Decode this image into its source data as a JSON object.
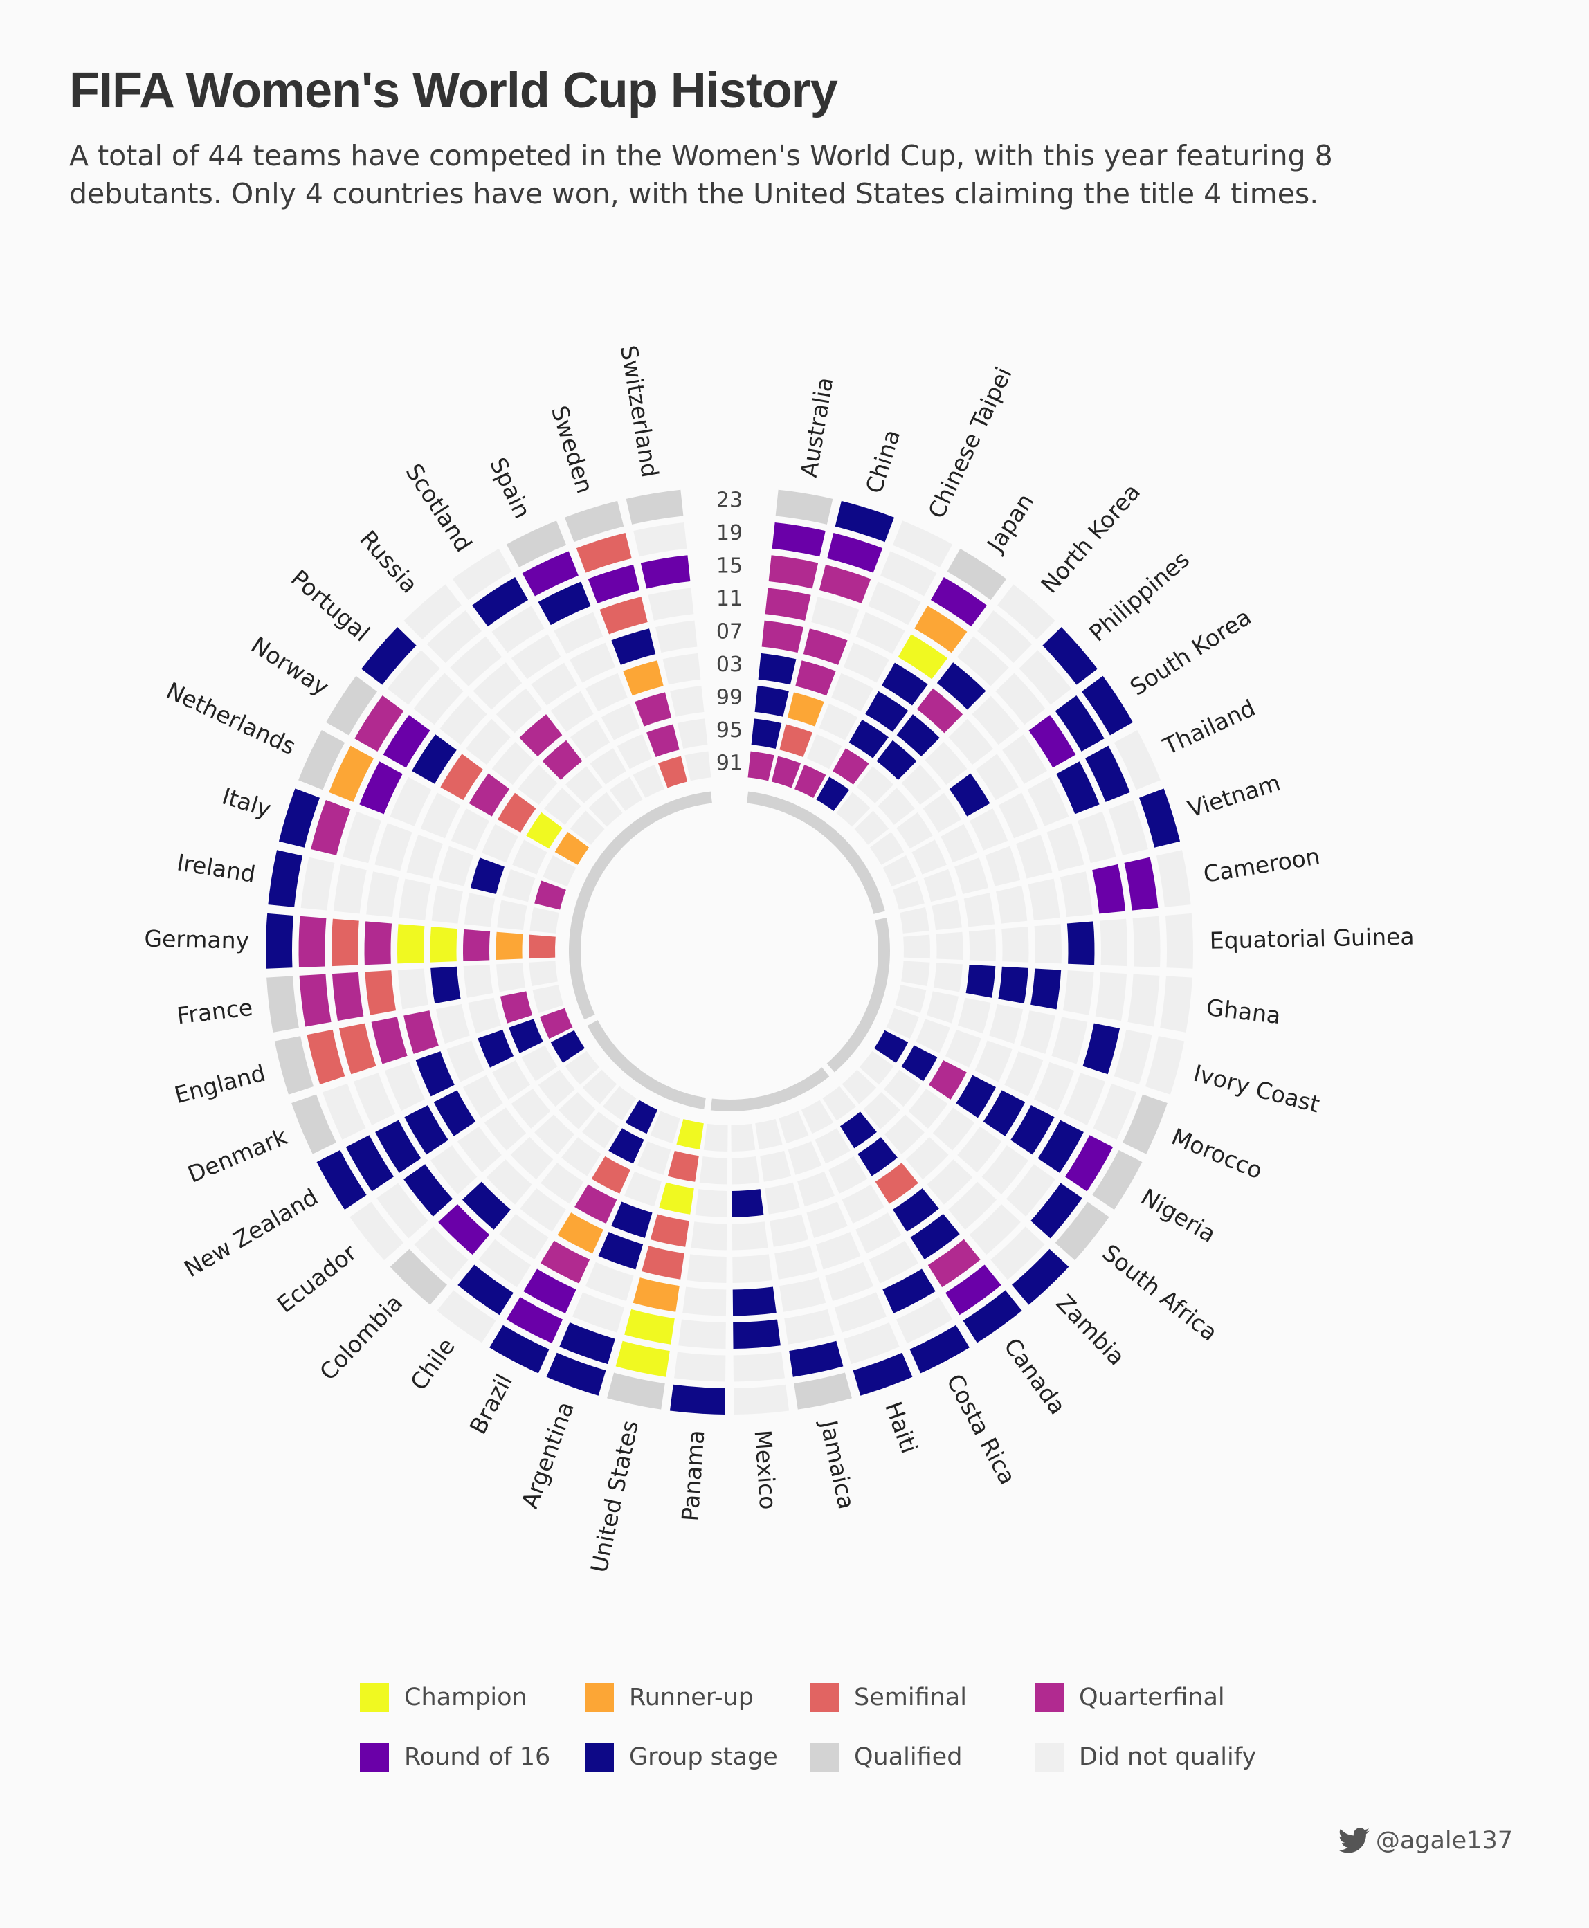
{
  "title": "FIFA Women's World Cup History",
  "subtitle": "A total of 44 teams have competed in the Women's World Cup, with this year featuring 8 debutants. Only 4 countries have won, with the United States claiming the title 4 times.",
  "credit": {
    "icon": "twitter-bird-icon",
    "handle": "@agale137"
  },
  "legend": [
    {
      "key": "C",
      "label": "Champion",
      "color": "#f0f921"
    },
    {
      "key": "F",
      "label": "Runner-up",
      "color": "#fca636"
    },
    {
      "key": "S",
      "label": "Semifinal",
      "color": "#e16462"
    },
    {
      "key": "Q",
      "label": "Quarterfinal",
      "color": "#b12a90"
    },
    {
      "key": "R",
      "label": "Round of 16",
      "color": "#6a00a8"
    },
    {
      "key": "G",
      "label": "Group stage",
      "color": "#0d0887"
    },
    {
      "key": "Y",
      "label": "Qualified",
      "color": "#d3d3d3"
    },
    {
      "key": "N",
      "label": "Did not qualify",
      "color": "#efefef"
    }
  ],
  "chart_data": {
    "type": "radial-heatmap",
    "year_labels": [
      "91",
      "95",
      "99",
      "03",
      "07",
      "11",
      "15",
      "19",
      "23"
    ],
    "results_order": "1991,1995,1999,2003,2007,2011,2015,2019,2023",
    "teams": [
      {
        "name": "Australia",
        "results": [
          "Q",
          "G",
          "G",
          "G",
          "Q",
          "Q",
          "Q",
          "R",
          "Y"
        ]
      },
      {
        "name": "China",
        "results": [
          "Q",
          "S",
          "F",
          "Q",
          "Q",
          "N",
          "Q",
          "R",
          "G"
        ]
      },
      {
        "name": "Chinese Taipei",
        "results": [
          "Q",
          "N",
          "N",
          "N",
          "N",
          "N",
          "N",
          "N",
          "N"
        ]
      },
      {
        "name": "Japan",
        "results": [
          "G",
          "Q",
          "G",
          "G",
          "G",
          "C",
          "F",
          "R",
          "Y"
        ]
      },
      {
        "name": "North Korea",
        "results": [
          "N",
          "N",
          "G",
          "G",
          "Q",
          "G",
          "N",
          "N",
          "N"
        ]
      },
      {
        "name": "Philippines",
        "results": [
          "N",
          "N",
          "N",
          "N",
          "N",
          "N",
          "N",
          "N",
          "G"
        ]
      },
      {
        "name": "South Korea",
        "results": [
          "N",
          "N",
          "N",
          "G",
          "N",
          "N",
          "R",
          "G",
          "G"
        ]
      },
      {
        "name": "Thailand",
        "results": [
          "N",
          "N",
          "N",
          "N",
          "N",
          "N",
          "G",
          "G",
          "N"
        ]
      },
      {
        "name": "Vietnam",
        "results": [
          "N",
          "N",
          "N",
          "N",
          "N",
          "N",
          "N",
          "N",
          "G"
        ]
      },
      {
        "name": "Cameroon",
        "results": [
          "N",
          "N",
          "N",
          "N",
          "N",
          "N",
          "R",
          "R",
          "N"
        ]
      },
      {
        "name": "Equatorial Guinea",
        "results": [
          "N",
          "N",
          "N",
          "N",
          "N",
          "G",
          "N",
          "N",
          "N"
        ]
      },
      {
        "name": "Ghana",
        "results": [
          "N",
          "N",
          "G",
          "G",
          "G",
          "N",
          "N",
          "N",
          "N"
        ]
      },
      {
        "name": "Ivory Coast",
        "results": [
          "N",
          "N",
          "N",
          "N",
          "N",
          "N",
          "G",
          "N",
          "N"
        ]
      },
      {
        "name": "Morocco",
        "results": [
          "N",
          "N",
          "N",
          "N",
          "N",
          "N",
          "N",
          "N",
          "Y"
        ]
      },
      {
        "name": "Nigeria",
        "results": [
          "G",
          "G",
          "Q",
          "G",
          "G",
          "G",
          "G",
          "R",
          "Y"
        ]
      },
      {
        "name": "South Africa",
        "results": [
          "N",
          "N",
          "N",
          "N",
          "N",
          "N",
          "N",
          "G",
          "Y"
        ]
      },
      {
        "name": "Zambia",
        "results": [
          "N",
          "N",
          "N",
          "N",
          "N",
          "N",
          "N",
          "N",
          "G"
        ]
      },
      {
        "name": "Canada",
        "results": [
          "N",
          "G",
          "G",
          "S",
          "G",
          "G",
          "Q",
          "R",
          "G"
        ]
      },
      {
        "name": "Costa Rica",
        "results": [
          "N",
          "N",
          "N",
          "N",
          "N",
          "N",
          "G",
          "N",
          "G"
        ]
      },
      {
        "name": "Haiti",
        "results": [
          "N",
          "N",
          "N",
          "N",
          "N",
          "N",
          "N",
          "N",
          "G"
        ]
      },
      {
        "name": "Jamaica",
        "results": [
          "N",
          "N",
          "N",
          "N",
          "N",
          "N",
          "N",
          "G",
          "Y"
        ]
      },
      {
        "name": "Mexico",
        "results": [
          "N",
          "N",
          "G",
          "N",
          "N",
          "G",
          "G",
          "N",
          "N"
        ]
      },
      {
        "name": "Panama",
        "results": [
          "N",
          "N",
          "N",
          "N",
          "N",
          "N",
          "N",
          "N",
          "G"
        ]
      },
      {
        "name": "United States",
        "results": [
          "C",
          "S",
          "C",
          "S",
          "S",
          "F",
          "C",
          "C",
          "Y"
        ]
      },
      {
        "name": "Argentina",
        "results": [
          "N",
          "N",
          "N",
          "G",
          "G",
          "N",
          "N",
          "G",
          "G"
        ]
      },
      {
        "name": "Brazil",
        "results": [
          "G",
          "G",
          "S",
          "Q",
          "F",
          "Q",
          "R",
          "R",
          "G"
        ]
      },
      {
        "name": "Chile",
        "results": [
          "N",
          "N",
          "N",
          "N",
          "N",
          "N",
          "N",
          "G",
          "N"
        ]
      },
      {
        "name": "Colombia",
        "results": [
          "N",
          "N",
          "N",
          "N",
          "N",
          "G",
          "R",
          "N",
          "Y"
        ]
      },
      {
        "name": "Ecuador",
        "results": [
          "N",
          "N",
          "N",
          "N",
          "N",
          "N",
          "G",
          "N",
          "N"
        ]
      },
      {
        "name": "New Zealand",
        "results": [
          "G",
          "N",
          "N",
          "N",
          "G",
          "G",
          "G",
          "G",
          "G"
        ]
      },
      {
        "name": "Denmark",
        "results": [
          "Q",
          "G",
          "G",
          "N",
          "G",
          "N",
          "N",
          "N",
          "Y"
        ]
      },
      {
        "name": "England",
        "results": [
          "N",
          "Q",
          "N",
          "N",
          "Q",
          "Q",
          "S",
          "S",
          "Y"
        ]
      },
      {
        "name": "France",
        "results": [
          "N",
          "N",
          "N",
          "G",
          "N",
          "S",
          "Q",
          "Q",
          "Y"
        ]
      },
      {
        "name": "Germany",
        "results": [
          "S",
          "F",
          "Q",
          "C",
          "C",
          "Q",
          "S",
          "Q",
          "G"
        ]
      },
      {
        "name": "Ireland",
        "results": [
          "N",
          "N",
          "N",
          "N",
          "N",
          "N",
          "N",
          "N",
          "G"
        ]
      },
      {
        "name": "Italy",
        "results": [
          "Q",
          "N",
          "G",
          "N",
          "N",
          "N",
          "N",
          "Q",
          "G"
        ]
      },
      {
        "name": "Netherlands",
        "results": [
          "N",
          "N",
          "N",
          "N",
          "N",
          "N",
          "R",
          "F",
          "Y"
        ]
      },
      {
        "name": "Norway",
        "results": [
          "F",
          "C",
          "S",
          "Q",
          "S",
          "G",
          "R",
          "Q",
          "Y"
        ]
      },
      {
        "name": "Portugal",
        "results": [
          "N",
          "N",
          "N",
          "N",
          "N",
          "N",
          "N",
          "N",
          "G"
        ]
      },
      {
        "name": "Russia",
        "results": [
          "N",
          "N",
          "Q",
          "Q",
          "N",
          "N",
          "N",
          "N",
          "N"
        ]
      },
      {
        "name": "Scotland",
        "results": [
          "N",
          "N",
          "N",
          "N",
          "N",
          "N",
          "N",
          "G",
          "N"
        ]
      },
      {
        "name": "Spain",
        "results": [
          "N",
          "N",
          "N",
          "N",
          "N",
          "N",
          "G",
          "R",
          "Y"
        ]
      },
      {
        "name": "Sweden",
        "results": [
          "S",
          "Q",
          "Q",
          "F",
          "G",
          "S",
          "R",
          "S",
          "Y"
        ]
      },
      {
        "name": "Switzerland",
        "results": [
          "N",
          "N",
          "N",
          "N",
          "N",
          "N",
          "R",
          "N",
          "Y"
        ]
      }
    ]
  }
}
